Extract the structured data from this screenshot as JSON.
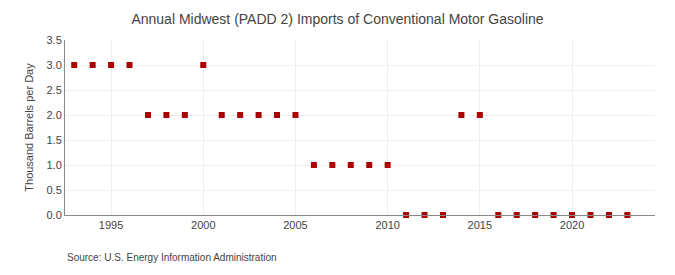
{
  "chart_data": {
    "type": "scatter",
    "title": "Annual Midwest (PADD 2) Imports of Conventional Motor Gasoline",
    "ylabel": "Thousand Barrels per Day",
    "annotations": [
      "Source: U.S. Energy Information Administration"
    ],
    "x": [
      1993,
      1994,
      1995,
      1996,
      1997,
      1998,
      1999,
      2000,
      2001,
      2002,
      2003,
      2004,
      2005,
      2006,
      2007,
      2008,
      2009,
      2010,
      2011,
      2012,
      2013,
      2014,
      2015,
      2016,
      2017,
      2018,
      2019,
      2020,
      2021,
      2022,
      2023
    ],
    "values": [
      3.0,
      3.0,
      3.0,
      3.0,
      2.0,
      2.0,
      2.0,
      3.0,
      2.0,
      2.0,
      2.0,
      2.0,
      2.0,
      1.0,
      1.0,
      1.0,
      1.0,
      1.0,
      0.0,
      0.0,
      0.0,
      2.0,
      2.0,
      0.0,
      0.0,
      0.0,
      0.0,
      0.0,
      0.0,
      0.0,
      0.0
    ],
    "color": "#aa0000",
    "marker": "square",
    "xlim": [
      1992.5,
      2024.5
    ],
    "xticks": [
      1995,
      2000,
      2005,
      2010,
      2015,
      2020
    ],
    "ylim": [
      0.0,
      3.5
    ],
    "yticks": [
      {
        "value": 0,
        "label": "0.0"
      },
      0.5,
      {
        "value": 1,
        "label": "1.0"
      },
      1.5,
      {
        "value": 2,
        "label": "2.0"
      },
      2.5,
      {
        "value": 3,
        "label": "3.0"
      },
      3.5
    ],
    "grid": true
  }
}
